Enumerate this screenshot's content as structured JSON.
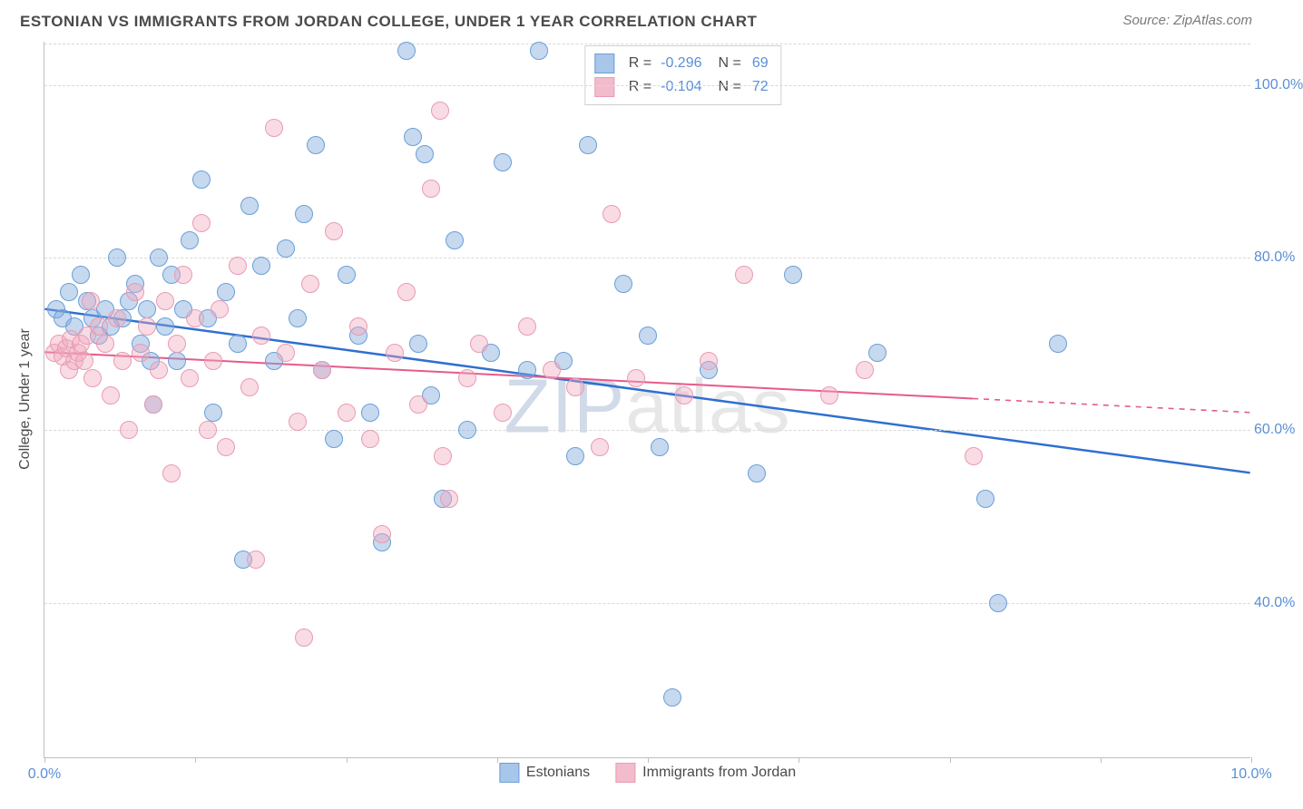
{
  "title": "ESTONIAN VS IMMIGRANTS FROM JORDAN COLLEGE, UNDER 1 YEAR CORRELATION CHART",
  "source": "Source: ZipAtlas.com",
  "yaxis_label": "College, Under 1 year",
  "watermark_a": "ZIP",
  "watermark_b": "atlas",
  "chart": {
    "type": "scatter",
    "background_color": "#ffffff",
    "grid_color": "#d9d9d9",
    "axis_color": "#bfbfbf",
    "xlim": [
      0,
      10
    ],
    "ylim": [
      22,
      105
    ],
    "xtick_positions": [
      0,
      1.25,
      2.5,
      3.75,
      5,
      6.25,
      7.5,
      8.75,
      10
    ],
    "xtick_labels_shown": {
      "0": "0.0%",
      "10": "10.0%"
    },
    "ytick_positions": [
      40,
      60,
      80,
      100
    ],
    "ytick_labels": [
      "40.0%",
      "60.0%",
      "80.0%",
      "100.0%"
    ],
    "dot_radius": 10,
    "dot_stroke_width": 1,
    "series": [
      {
        "name": "Estonians",
        "color_fill": "rgba(130,170,220,0.45)",
        "color_stroke": "#6a9fd8",
        "swatch_color": "#a8c6e9",
        "trend_color": "#2f6fd0",
        "trend_width": 2.5,
        "trend_dash_after_x": 10,
        "stats": {
          "R": "-0.296",
          "N": "69"
        },
        "trend": {
          "x1": 0,
          "y1": 74,
          "x2": 10,
          "y2": 55
        },
        "points": [
          [
            0.1,
            74
          ],
          [
            0.15,
            73
          ],
          [
            0.2,
            76
          ],
          [
            0.25,
            72
          ],
          [
            0.3,
            78
          ],
          [
            0.35,
            75
          ],
          [
            0.4,
            73
          ],
          [
            0.45,
            71
          ],
          [
            0.5,
            74
          ],
          [
            0.55,
            72
          ],
          [
            0.6,
            80
          ],
          [
            0.65,
            73
          ],
          [
            0.7,
            75
          ],
          [
            0.75,
            77
          ],
          [
            0.8,
            70
          ],
          [
            0.85,
            74
          ],
          [
            0.88,
            68
          ],
          [
            0.9,
            63
          ],
          [
            0.95,
            80
          ],
          [
            1.0,
            72
          ],
          [
            1.05,
            78
          ],
          [
            1.1,
            68
          ],
          [
            1.15,
            74
          ],
          [
            1.2,
            82
          ],
          [
            1.3,
            89
          ],
          [
            1.35,
            73
          ],
          [
            1.4,
            62
          ],
          [
            1.5,
            76
          ],
          [
            1.6,
            70
          ],
          [
            1.65,
            45
          ],
          [
            1.7,
            86
          ],
          [
            1.8,
            79
          ],
          [
            1.9,
            68
          ],
          [
            2.0,
            81
          ],
          [
            2.1,
            73
          ],
          [
            2.15,
            85
          ],
          [
            2.25,
            93
          ],
          [
            2.3,
            67
          ],
          [
            2.4,
            59
          ],
          [
            2.5,
            78
          ],
          [
            2.6,
            71
          ],
          [
            2.7,
            62
          ],
          [
            2.8,
            47
          ],
          [
            3.0,
            104
          ],
          [
            3.05,
            94
          ],
          [
            3.1,
            70
          ],
          [
            3.15,
            92
          ],
          [
            3.2,
            64
          ],
          [
            3.3,
            52
          ],
          [
            3.4,
            82
          ],
          [
            3.5,
            60
          ],
          [
            3.7,
            69
          ],
          [
            3.8,
            91
          ],
          [
            4.0,
            67
          ],
          [
            4.1,
            104
          ],
          [
            4.3,
            68
          ],
          [
            4.4,
            57
          ],
          [
            4.5,
            93
          ],
          [
            4.8,
            77
          ],
          [
            5.0,
            71
          ],
          [
            5.1,
            58
          ],
          [
            5.2,
            29
          ],
          [
            5.5,
            67
          ],
          [
            5.9,
            55
          ],
          [
            6.2,
            78
          ],
          [
            6.9,
            69
          ],
          [
            7.8,
            52
          ],
          [
            7.9,
            40
          ],
          [
            8.4,
            70
          ]
        ]
      },
      {
        "name": "Immigrants from Jordan",
        "color_fill": "rgba(240,170,190,0.42)",
        "color_stroke": "#e99bb3",
        "swatch_color": "#f3bccd",
        "trend_color": "#e75a8c",
        "trend_width": 2,
        "trend_dash_after_x": 7.7,
        "stats": {
          "R": "-0.104",
          "N": "72"
        },
        "trend": {
          "x1": 0,
          "y1": 69,
          "x2": 10,
          "y2": 62
        },
        "points": [
          [
            0.08,
            69
          ],
          [
            0.12,
            70
          ],
          [
            0.15,
            68.5
          ],
          [
            0.18,
            69.5
          ],
          [
            0.2,
            67
          ],
          [
            0.22,
            70.5
          ],
          [
            0.25,
            68
          ],
          [
            0.28,
            69
          ],
          [
            0.3,
            70
          ],
          [
            0.33,
            68
          ],
          [
            0.35,
            71
          ],
          [
            0.38,
            75
          ],
          [
            0.4,
            66
          ],
          [
            0.45,
            72
          ],
          [
            0.5,
            70
          ],
          [
            0.55,
            64
          ],
          [
            0.6,
            73
          ],
          [
            0.65,
            68
          ],
          [
            0.7,
            60
          ],
          [
            0.75,
            76
          ],
          [
            0.8,
            69
          ],
          [
            0.85,
            72
          ],
          [
            0.9,
            63
          ],
          [
            0.95,
            67
          ],
          [
            1.0,
            75
          ],
          [
            1.05,
            55
          ],
          [
            1.1,
            70
          ],
          [
            1.15,
            78
          ],
          [
            1.2,
            66
          ],
          [
            1.25,
            73
          ],
          [
            1.3,
            84
          ],
          [
            1.35,
            60
          ],
          [
            1.4,
            68
          ],
          [
            1.45,
            74
          ],
          [
            1.5,
            58
          ],
          [
            1.6,
            79
          ],
          [
            1.7,
            65
          ],
          [
            1.75,
            45
          ],
          [
            1.8,
            71
          ],
          [
            1.9,
            95
          ],
          [
            2.0,
            69
          ],
          [
            2.1,
            61
          ],
          [
            2.15,
            36
          ],
          [
            2.2,
            77
          ],
          [
            2.3,
            67
          ],
          [
            2.4,
            83
          ],
          [
            2.5,
            62
          ],
          [
            2.6,
            72
          ],
          [
            2.7,
            59
          ],
          [
            2.8,
            48
          ],
          [
            2.9,
            69
          ],
          [
            3.0,
            76
          ],
          [
            3.1,
            63
          ],
          [
            3.2,
            88
          ],
          [
            3.28,
            97
          ],
          [
            3.3,
            57
          ],
          [
            3.35,
            52
          ],
          [
            3.5,
            66
          ],
          [
            3.6,
            70
          ],
          [
            3.8,
            62
          ],
          [
            4.0,
            72
          ],
          [
            4.2,
            67
          ],
          [
            4.4,
            65
          ],
          [
            4.6,
            58
          ],
          [
            4.7,
            85
          ],
          [
            4.9,
            66
          ],
          [
            5.3,
            64
          ],
          [
            5.5,
            68
          ],
          [
            5.8,
            78
          ],
          [
            6.5,
            64
          ],
          [
            6.8,
            67
          ],
          [
            7.7,
            57
          ]
        ]
      }
    ]
  }
}
